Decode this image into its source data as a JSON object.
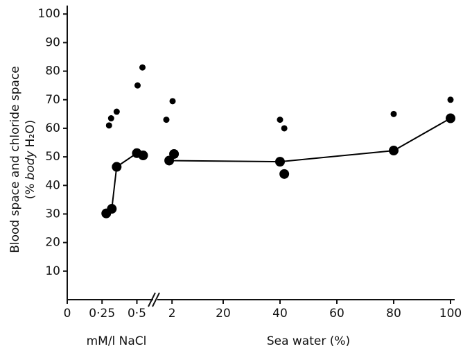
{
  "chart_data": [
    {
      "type": "scatter",
      "xlabel": "mM/l NaCl",
      "ylabel": [
        "Blood space and chloride space",
        "(%",
        "body",
        "H₂O)"
      ],
      "xlim": [
        0,
        0.62
      ],
      "xticks": [
        0,
        {
          "value": 0.25,
          "label": "0·25"
        },
        {
          "value": 0.5,
          "label": "0·5"
        }
      ],
      "ylim": [
        0,
        102
      ],
      "yticks": [
        10,
        20,
        30,
        40,
        50,
        60,
        70,
        80,
        90,
        100
      ],
      "series": [
        {
          "color": "#000000",
          "marker_size": 4.5,
          "line": false,
          "x": [
            0.3,
            0.315,
            0.355,
            0.505,
            0.54
          ],
          "values": [
            61,
            63.5,
            65.8,
            75,
            81.3
          ]
        },
        {
          "color": "#000000",
          "marker_size": 7,
          "line": true,
          "x": [
            0.28,
            0.32,
            0.355,
            0.5,
            0.545
          ],
          "values": [
            30.2,
            31.8,
            46.5,
            51.3,
            50.5
          ]
        }
      ]
    },
    {
      "type": "scatter",
      "xlabel": "Sea water (%)",
      "xlim": [
        -4,
        100
      ],
      "xticks": [
        2,
        20,
        40,
        60,
        80,
        100
      ],
      "ylim": [
        0,
        102
      ],
      "series": [
        {
          "color": "#000000",
          "marker_size": 4.5,
          "line": false,
          "x": [
            0,
            2.2,
            40,
            41.5,
            80,
            100
          ],
          "values": [
            63,
            69.5,
            63,
            60,
            65,
            70
          ]
        },
        {
          "color": "#000000",
          "marker_size": 7,
          "line": false,
          "x": [
            1,
            2.7,
            40,
            41.5,
            80,
            100
          ],
          "values": [
            48.7,
            51,
            48.3,
            44,
            52.2,
            63.5
          ]
        },
        {
          "color": "#000000",
          "marker_size": 0,
          "line": true,
          "x": [
            1,
            40,
            80,
            100
          ],
          "values": [
            48.7,
            48.3,
            52.2,
            63.5
          ]
        }
      ]
    }
  ]
}
